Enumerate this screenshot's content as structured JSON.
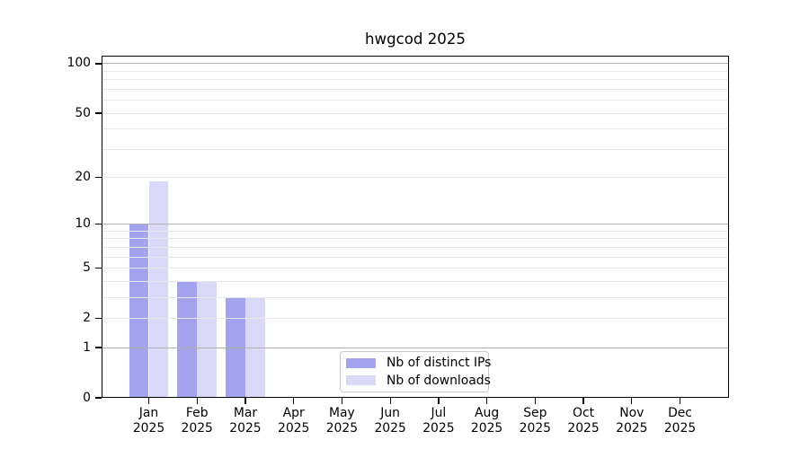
{
  "title": "hwgcod 2025",
  "chart_data": {
    "type": "bar",
    "title": "hwgcod 2025",
    "categories": [
      "Jan 2025",
      "Feb 2025",
      "Mar 2025",
      "Apr 2025",
      "May 2025",
      "Jun 2025",
      "Jul 2025",
      "Aug 2025",
      "Sep 2025",
      "Oct 2025",
      "Nov 2025",
      "Dec 2025"
    ],
    "months": [
      "Jan",
      "Feb",
      "Mar",
      "Apr",
      "May",
      "Jun",
      "Jul",
      "Aug",
      "Sep",
      "Oct",
      "Nov",
      "Dec"
    ],
    "year": "2025",
    "series": [
      {
        "name": "Nb of distinct IPs",
        "color": "#a3a3ef",
        "values": [
          10,
          4,
          3,
          0,
          0,
          0,
          0,
          0,
          0,
          0,
          0,
          0
        ]
      },
      {
        "name": "Nb of downloads",
        "color": "#d9d9f7",
        "values": [
          19,
          4,
          3,
          0,
          0,
          0,
          0,
          0,
          0,
          0,
          0,
          0
        ]
      }
    ],
    "xlabel": "",
    "ylabel": "",
    "y_axis": {
      "scale": "log10(1+y)",
      "tick_labels": [
        100,
        50,
        20,
        10,
        5,
        2,
        1,
        0
      ],
      "gridlines_major": [
        1,
        10,
        100
      ],
      "gridlines_minor": [
        2,
        3,
        4,
        5,
        6,
        7,
        8,
        9,
        20,
        30,
        40,
        50,
        60,
        70,
        80,
        90
      ],
      "ylim": [
        0,
        112
      ]
    },
    "legend": {
      "position": "lower center",
      "entries": [
        "Nb of distinct IPs",
        "Nb of downloads"
      ]
    },
    "colors": {
      "bar_dark": "#a3a3ef",
      "bar_light": "#d9d9f7",
      "grid_major": "#b0b0b0",
      "grid_minor": "#e8e8e8",
      "spine": "#000000",
      "text": "#000000",
      "background": "#ffffff"
    }
  }
}
